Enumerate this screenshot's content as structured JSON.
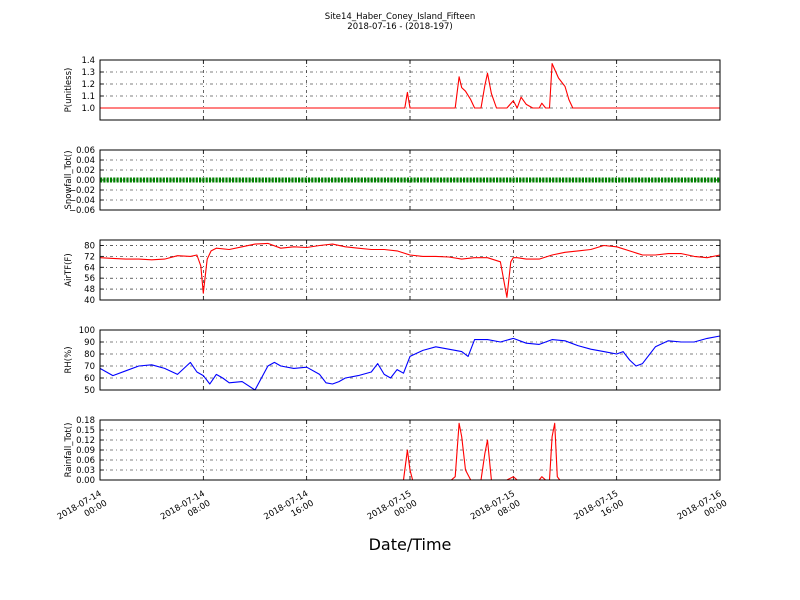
{
  "title": "Site14_Haber_Coney_Island_Fifteen",
  "subtitle": "2018-07-16 - (2018-197)",
  "xlabel": "Date/Time",
  "x_ticks": [
    [
      "2018-07-14",
      "00:00"
    ],
    [
      "2018-07-14",
      "08:00"
    ],
    [
      "2018-07-14",
      "16:00"
    ],
    [
      "2018-07-15",
      "00:00"
    ],
    [
      "2018-07-15",
      "08:00"
    ],
    [
      "2018-07-15",
      "16:00"
    ],
    [
      "2018-07-16",
      "00:00"
    ]
  ],
  "chart_data": [
    {
      "type": "line",
      "ylabel": "P(unitless)",
      "xlim_hours": [
        0,
        48
      ],
      "ylim": [
        0.9,
        1.4
      ],
      "yticks": [
        1.0,
        1.1,
        1.2,
        1.3,
        1.4
      ],
      "tick_labels": [
        "1.0",
        "1.1",
        "1.2",
        "1.3",
        "1.4"
      ],
      "grid": true,
      "color": "#ff0000",
      "marker": "none",
      "series": [
        {
          "x": [
            0,
            23.6,
            23.8,
            24.0,
            24.2,
            27.5,
            27.8,
            28.0,
            28.3,
            28.7,
            29.0,
            29.5,
            29.8,
            30.0,
            30.3,
            30.7,
            31.0,
            31.5,
            32.0,
            32.3,
            32.6,
            33.0,
            33.5,
            34.0,
            34.2,
            34.5,
            34.8,
            35.0,
            35.5,
            36.0,
            36.3,
            36.6,
            48.0
          ],
          "y": [
            1.0,
            1.0,
            1.13,
            1.0,
            1.0,
            1.0,
            1.26,
            1.17,
            1.14,
            1.07,
            1.0,
            1.0,
            1.19,
            1.29,
            1.12,
            1.0,
            1.0,
            1.0,
            1.06,
            1.0,
            1.09,
            1.03,
            1.0,
            1.0,
            1.04,
            1.0,
            1.0,
            1.37,
            1.25,
            1.18,
            1.07,
            1.0,
            1.0
          ]
        }
      ]
    },
    {
      "type": "line",
      "ylabel": "Snowfall_Tot()",
      "xlim_hours": [
        0,
        48
      ],
      "ylim": [
        -0.06,
        0.06
      ],
      "yticks": [
        -0.06,
        -0.04,
        -0.02,
        0.0,
        0.02,
        0.04,
        0.06
      ],
      "tick_labels": [
        "−0.06",
        "−0.04",
        "−0.02",
        "0.00",
        "0.02",
        "0.04",
        "0.06"
      ],
      "grid": true,
      "color": "#008000",
      "marker": "dot",
      "series": [
        {
          "x": [
            0,
            48
          ],
          "y": [
            0.0,
            0.0
          ]
        }
      ]
    },
    {
      "type": "line",
      "ylabel": "AirTF(F)",
      "xlim_hours": [
        0,
        48
      ],
      "ylim": [
        40,
        84
      ],
      "yticks": [
        40,
        48,
        56,
        64,
        72,
        80
      ],
      "tick_labels": [
        "40",
        "48",
        "56",
        "64",
        "72",
        "80"
      ],
      "grid": true,
      "color": "#ff0000",
      "marker": "none",
      "series": [
        {
          "x": [
            0,
            1,
            2,
            3,
            4,
            5,
            6,
            7,
            7.5,
            7.8,
            8.0,
            8.3,
            8.6,
            9,
            10,
            11,
            12,
            13,
            14,
            15,
            16,
            17,
            18,
            19,
            20,
            21,
            22,
            23,
            24,
            25,
            26,
            27,
            28,
            29,
            30,
            31,
            31.5,
            31.8,
            32.0,
            32.3,
            33,
            34,
            35,
            36,
            37,
            38,
            39,
            40,
            41,
            42,
            43,
            44,
            45,
            46,
            47,
            48
          ],
          "y": [
            71,
            70.5,
            70,
            70,
            69.5,
            70,
            72.5,
            72,
            73,
            65,
            45,
            70,
            76,
            78,
            77,
            79,
            81,
            81.5,
            78,
            79,
            78.5,
            80,
            81,
            79,
            78,
            77,
            77,
            76,
            73,
            72,
            72,
            71.5,
            70,
            71,
            71,
            68,
            42,
            68,
            71,
            71,
            70,
            70,
            73,
            75,
            76,
            77,
            80,
            79,
            76,
            73,
            73,
            74,
            74,
            72,
            71,
            73
          ]
        }
      ]
    },
    {
      "type": "line",
      "ylabel": "RH(%)",
      "xlim_hours": [
        0,
        48
      ],
      "ylim": [
        50,
        100
      ],
      "yticks": [
        50,
        60,
        70,
        80,
        90,
        100
      ],
      "tick_labels": [
        "50",
        "60",
        "70",
        "80",
        "90",
        "100"
      ],
      "grid": true,
      "color": "#0000ff",
      "marker": "none",
      "series": [
        {
          "x": [
            0,
            1,
            2,
            3,
            4,
            5,
            6,
            7,
            7.5,
            8,
            8.5,
            9,
            9.5,
            10,
            11,
            12,
            13,
            13.5,
            14,
            15,
            16,
            17,
            17.5,
            18,
            18.5,
            19,
            20,
            21,
            21.5,
            22,
            22.5,
            23,
            23.5,
            24,
            25,
            26,
            27,
            28,
            28.5,
            29,
            30,
            31,
            32,
            33,
            34,
            35,
            36,
            37,
            38,
            39,
            40,
            40.5,
            41,
            41.5,
            42,
            43,
            44,
            45,
            46,
            47,
            48
          ],
          "y": [
            68,
            62,
            66,
            70,
            71,
            68,
            63,
            73,
            65,
            62,
            55,
            63,
            60,
            56,
            57,
            50,
            70,
            73,
            70,
            68,
            69,
            63,
            56,
            55,
            57,
            60,
            62,
            65,
            72,
            63,
            60,
            67,
            64,
            78,
            83,
            86,
            84,
            82,
            78,
            92,
            92,
            90,
            93,
            89,
            88,
            92,
            91,
            87,
            84,
            82,
            80,
            82,
            75,
            70,
            72,
            86,
            91,
            90,
            90,
            93,
            95
          ]
        }
      ]
    },
    {
      "type": "line",
      "ylabel": "Rainfall_Tot()",
      "xlim_hours": [
        0,
        48
      ],
      "ylim": [
        0.0,
        0.18
      ],
      "yticks": [
        0.0,
        0.03,
        0.06,
        0.09,
        0.12,
        0.15,
        0.18
      ],
      "tick_labels": [
        "0.00",
        "0.03",
        "0.06",
        "0.09",
        "0.12",
        "0.15",
        "0.18"
      ],
      "grid": true,
      "color": "#ff0000",
      "marker": "none",
      "series": [
        {
          "x": [
            0,
            23.5,
            23.8,
            24.0,
            24.2,
            27.2,
            27.5,
            27.8,
            28.0,
            28.3,
            28.7,
            29.0,
            29.5,
            29.8,
            30.0,
            30.3,
            31.5,
            32.0,
            32.3,
            34.0,
            34.2,
            34.5,
            34.8,
            35.0,
            35.2,
            35.4,
            35.6,
            48.0
          ],
          "y": [
            0.0,
            0.0,
            0.09,
            0.03,
            0.0,
            0.0,
            0.01,
            0.17,
            0.13,
            0.03,
            0.0,
            0.0,
            0.0,
            0.08,
            0.12,
            0.0,
            0.0,
            0.01,
            0.0,
            0.0,
            0.01,
            0.0,
            0.0,
            0.13,
            0.17,
            0.01,
            0.0,
            0.0
          ]
        }
      ]
    }
  ]
}
